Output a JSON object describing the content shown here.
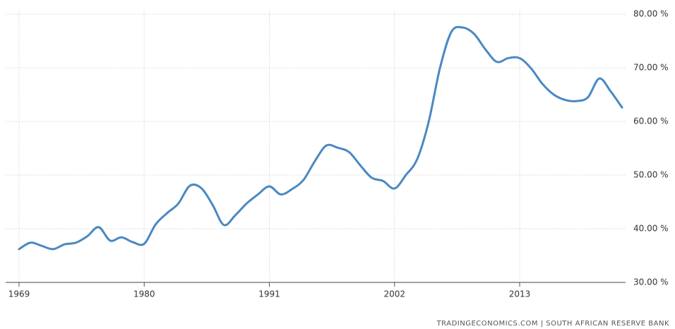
{
  "chart_data": {
    "type": "line",
    "x": [
      1969,
      1970,
      1971,
      1972,
      1973,
      1974,
      1975,
      1976,
      1977,
      1978,
      1979,
      1980,
      1981,
      1982,
      1983,
      1984,
      1985,
      1986,
      1987,
      1988,
      1989,
      1990,
      1991,
      1992,
      1993,
      1994,
      1995,
      1996,
      1997,
      1998,
      1999,
      2000,
      2001,
      2002,
      2003,
      2004,
      2005,
      2006,
      2007,
      2008,
      2009,
      2010,
      2011,
      2012,
      2013,
      2014,
      2015,
      2016,
      2017,
      2018,
      2019,
      2020,
      2021,
      2022
    ],
    "series": [
      {
        "color": "#4a88c2",
        "values": [
          36.2,
          37.4,
          36.8,
          36.2,
          37.1,
          37.4,
          38.6,
          40.3,
          37.8,
          38.4,
          37.5,
          37.2,
          40.8,
          42.9,
          44.7,
          48.0,
          47.6,
          44.5,
          40.7,
          42.5,
          44.7,
          46.4,
          47.9,
          46.4,
          47.4,
          49.1,
          52.6,
          55.5,
          55.1,
          54.3,
          51.8,
          49.5,
          48.9,
          47.5,
          50.0,
          53.0,
          59.9,
          70.0,
          76.7,
          77.5,
          76.3,
          73.4,
          71.1,
          71.8,
          71.8,
          69.9,
          67.0,
          65.0,
          64.0,
          63.8,
          64.5,
          68.0,
          65.6,
          62.6
        ]
      }
    ],
    "xlim": [
      1969,
      2022
    ],
    "xticks": [
      1969,
      1980,
      1991,
      2002,
      2013
    ],
    "ylim": [
      30,
      80
    ],
    "yticks": [
      {
        "value": 30,
        "label": "30.00 %"
      },
      {
        "value": 40,
        "label": "40.00 %"
      },
      {
        "value": 50,
        "label": "50.00 %"
      },
      {
        "value": 60,
        "label": "60.00 %"
      },
      {
        "value": 70,
        "label": "70.00 %"
      },
      {
        "value": 80,
        "label": "80.00 %"
      }
    ],
    "grid": true,
    "source": "TRADINGECONOMICS.COM  |  SOUTH AFRICAN RESERVE BANK"
  }
}
